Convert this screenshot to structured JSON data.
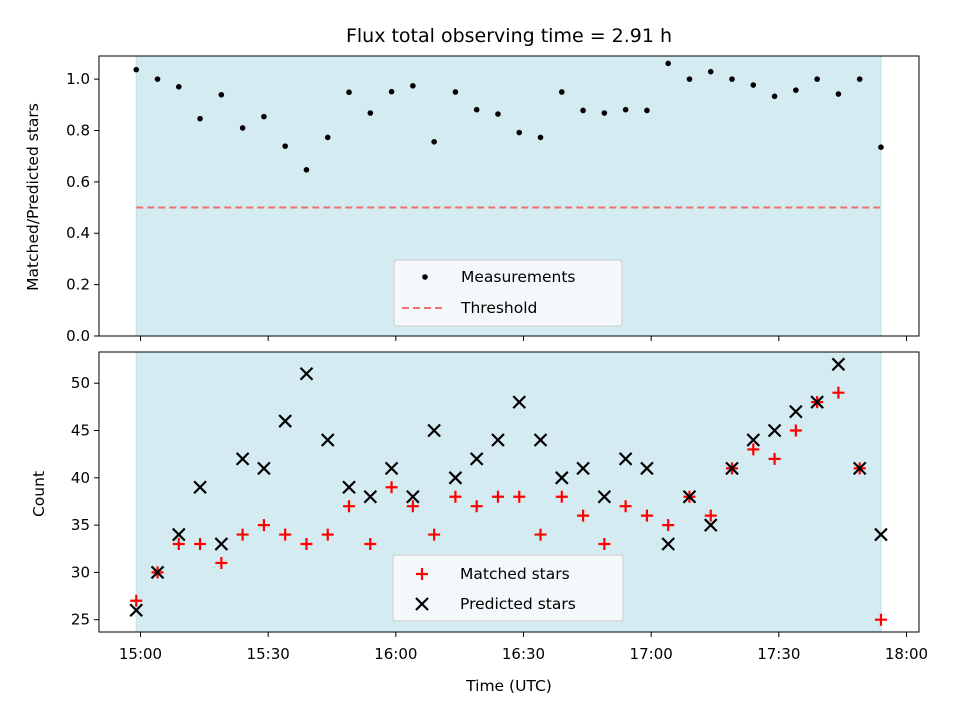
{
  "chart_data": [
    {
      "type": "scatter",
      "title": "Flux total observing time = 2.91 h",
      "xlabel": "",
      "ylabel": "Matched/Predicted stars",
      "ylim": [
        0.0,
        1.09
      ],
      "yticks": [
        "0.0",
        "0.2",
        "0.4",
        "0.6",
        "0.8",
        "1.0"
      ],
      "shaded_span_x": [
        "14:59",
        "17:54"
      ],
      "shade_color": "#d4ebf1",
      "legend_position": "lower center",
      "series": [
        {
          "name": "Measurements",
          "marker": "dot",
          "color": "#000000",
          "x": [
            "14:59",
            "15:04",
            "15:09",
            "15:14",
            "15:19",
            "15:24",
            "15:29",
            "15:34",
            "15:39",
            "15:44",
            "15:49",
            "15:54",
            "15:59",
            "16:04",
            "16:09",
            "16:14",
            "16:19",
            "16:24",
            "16:29",
            "16:34",
            "16:39",
            "16:44",
            "16:49",
            "16:54",
            "16:59",
            "17:04",
            "17:09",
            "17:14",
            "17:19",
            "17:24",
            "17:29",
            "17:34",
            "17:39",
            "17:44",
            "17:49",
            "17:54"
          ],
          "y": [
            1.037,
            1.0,
            0.97,
            0.846,
            0.939,
            0.81,
            0.854,
            0.739,
            0.647,
            0.773,
            0.949,
            0.868,
            0.951,
            0.974,
            0.756,
            0.95,
            0.881,
            0.864,
            0.792,
            0.773,
            0.95,
            0.878,
            0.868,
            0.881,
            0.878,
            1.061,
            1.0,
            1.029,
            1.0,
            0.977,
            0.933,
            0.957,
            1.0,
            0.942,
            1.0,
            0.735
          ]
        },
        {
          "name": "Threshold",
          "marker": "dashed-line",
          "color": "#f07070",
          "x": [
            "14:59",
            "17:54"
          ],
          "y": [
            0.5,
            0.5
          ]
        }
      ]
    },
    {
      "type": "scatter",
      "title": "",
      "xlabel": "Time (UTC)",
      "ylabel": "Count",
      "ylim": [
        23.7,
        53.3
      ],
      "yticks": [
        "25",
        "30",
        "35",
        "40",
        "45",
        "50"
      ],
      "xticks": [
        "15:00",
        "15:30",
        "16:00",
        "16:30",
        "17:00",
        "17:30",
        "18:00"
      ],
      "shaded_span_x": [
        "14:59",
        "17:54"
      ],
      "shade_color": "#d4ebf1",
      "legend_position": "lower center",
      "series": [
        {
          "name": "Matched stars",
          "marker": "plus",
          "color": "#ff0000",
          "x": [
            "14:59",
            "15:04",
            "15:09",
            "15:14",
            "15:19",
            "15:24",
            "15:29",
            "15:34",
            "15:39",
            "15:44",
            "15:49",
            "15:54",
            "15:59",
            "16:04",
            "16:09",
            "16:14",
            "16:19",
            "16:24",
            "16:29",
            "16:34",
            "16:39",
            "16:44",
            "16:49",
            "16:54",
            "16:59",
            "17:04",
            "17:09",
            "17:14",
            "17:19",
            "17:24",
            "17:29",
            "17:34",
            "17:39",
            "17:44",
            "17:49",
            "17:54"
          ],
          "y": [
            27,
            30,
            33,
            33,
            31,
            34,
            35,
            34,
            33,
            34,
            37,
            33,
            39,
            37,
            34,
            38,
            37,
            38,
            38,
            34,
            38,
            36,
            33,
            37,
            36,
            35,
            38,
            36,
            41,
            43,
            42,
            45,
            48,
            49,
            41,
            25
          ]
        },
        {
          "name": "Predicted stars",
          "marker": "x",
          "color": "#000000",
          "x": [
            "14:59",
            "15:04",
            "15:09",
            "15:14",
            "15:19",
            "15:24",
            "15:29",
            "15:34",
            "15:39",
            "15:44",
            "15:49",
            "15:54",
            "15:59",
            "16:04",
            "16:09",
            "16:14",
            "16:19",
            "16:24",
            "16:29",
            "16:34",
            "16:39",
            "16:44",
            "16:49",
            "16:54",
            "16:59",
            "17:04",
            "17:09",
            "17:14",
            "17:19",
            "17:24",
            "17:29",
            "17:34",
            "17:39",
            "17:44",
            "17:49",
            "17:54"
          ],
          "y": [
            26,
            30,
            34,
            39,
            33,
            42,
            41,
            46,
            51,
            44,
            39,
            38,
            41,
            38,
            45,
            40,
            42,
            44,
            48,
            44,
            40,
            41,
            38,
            42,
            41,
            33,
            38,
            35,
            41,
            44,
            45,
            47,
            48,
            52,
            41,
            34
          ]
        }
      ]
    }
  ]
}
